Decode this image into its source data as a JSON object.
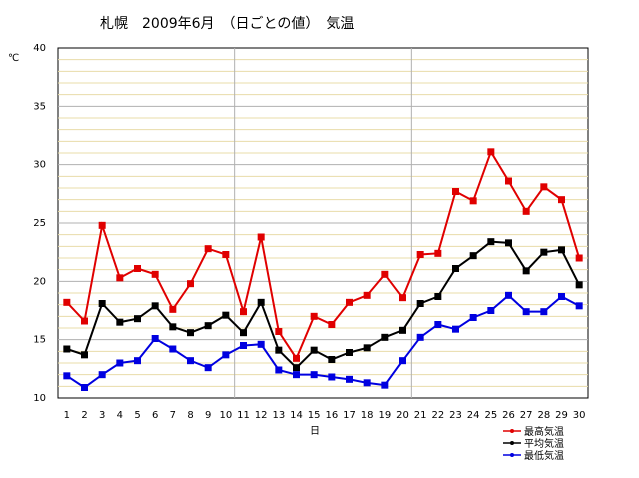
{
  "chart_data": {
    "type": "line",
    "title": "札幌　2009年6月　（日ごとの値）　気温",
    "ylabel": "℃",
    "xlabel": "日",
    "ylim": [
      10,
      40
    ],
    "yticks": [
      10,
      15,
      20,
      25,
      30,
      35,
      40
    ],
    "x": [
      1,
      2,
      3,
      4,
      5,
      6,
      7,
      8,
      9,
      10,
      11,
      12,
      13,
      14,
      15,
      16,
      17,
      18,
      19,
      20,
      21,
      22,
      23,
      24,
      25,
      26,
      27,
      28,
      29,
      30
    ],
    "grid": "horizontal minor lines every 1℃, major every 5℃; vertical lines at days 10 and 20",
    "legend_position": "bottom-right",
    "series": [
      {
        "name": "最高気温",
        "color": "#e00000",
        "values": [
          18.2,
          16.6,
          24.8,
          20.3,
          21.1,
          20.6,
          17.6,
          19.8,
          22.8,
          22.3,
          17.4,
          23.8,
          15.7,
          13.4,
          17.0,
          16.3,
          18.2,
          18.8,
          20.6,
          18.6,
          22.3,
          22.4,
          27.7,
          26.9,
          31.1,
          28.6,
          26.0,
          28.1,
          27.0,
          22.0
        ]
      },
      {
        "name": "平均気温",
        "color": "#000000",
        "values": [
          14.2,
          13.7,
          18.1,
          16.5,
          16.8,
          17.9,
          16.1,
          15.6,
          16.2,
          17.1,
          15.6,
          18.2,
          14.1,
          12.6,
          14.1,
          13.3,
          13.9,
          14.3,
          15.2,
          15.8,
          18.1,
          18.7,
          21.1,
          22.2,
          23.4,
          23.3,
          20.9,
          22.5,
          22.7,
          19.7
        ]
      },
      {
        "name": "最低気温",
        "color": "#0000e0",
        "values": [
          11.9,
          10.9,
          12.0,
          13.0,
          13.2,
          15.1,
          14.2,
          13.2,
          12.6,
          13.7,
          14.5,
          14.6,
          12.4,
          12.0,
          12.0,
          11.8,
          11.6,
          11.3,
          11.1,
          13.2,
          15.2,
          16.3,
          15.9,
          16.9,
          17.5,
          18.8,
          17.4,
          17.4,
          18.7,
          17.9
        ]
      }
    ]
  }
}
